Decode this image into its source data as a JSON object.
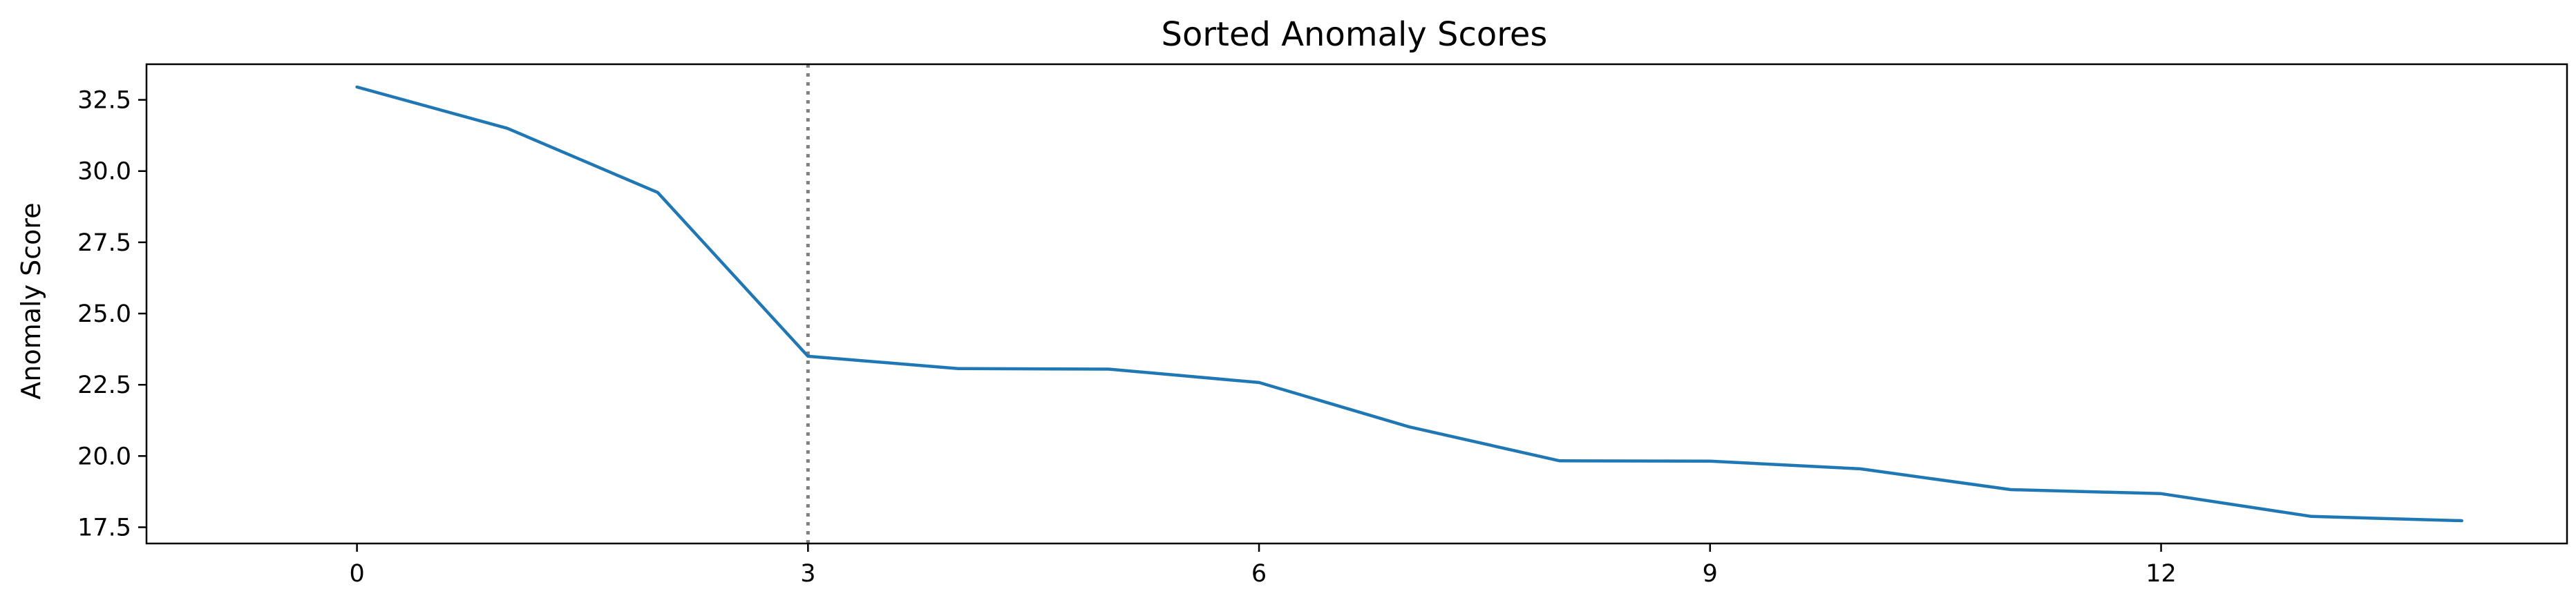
{
  "chart_data": {
    "type": "line",
    "title": "Sorted Anomaly Scores",
    "xlabel": "",
    "ylabel": "Anomaly Score",
    "x": [
      0,
      1,
      2,
      3,
      4,
      5,
      6,
      7,
      8,
      9,
      10,
      11,
      12,
      13,
      14
    ],
    "series": [
      {
        "values": [
          32.95,
          31.5,
          29.25,
          23.5,
          23.07,
          23.05,
          22.58,
          21.02,
          19.83,
          19.82,
          19.55,
          18.82,
          18.68,
          17.88,
          17.73
        ]
      }
    ],
    "xlim": [
      -1.4,
      14.7
    ],
    "ylim": [
      16.93,
      33.75
    ],
    "xticks": [
      0,
      3,
      6,
      9,
      12
    ],
    "xtick_labels": [
      "0",
      "3",
      "6",
      "9",
      "12"
    ],
    "yticks": [
      17.5,
      20.0,
      22.5,
      25.0,
      27.5,
      30.0,
      32.5
    ],
    "ytick_labels": [
      "17.5",
      "20.0",
      "22.5",
      "25.0",
      "27.5",
      "30.0",
      "32.5"
    ],
    "vline_x": 3,
    "grid": false,
    "legend": "none",
    "line_color": "#1f77b4",
    "vline_color": "#808080"
  }
}
